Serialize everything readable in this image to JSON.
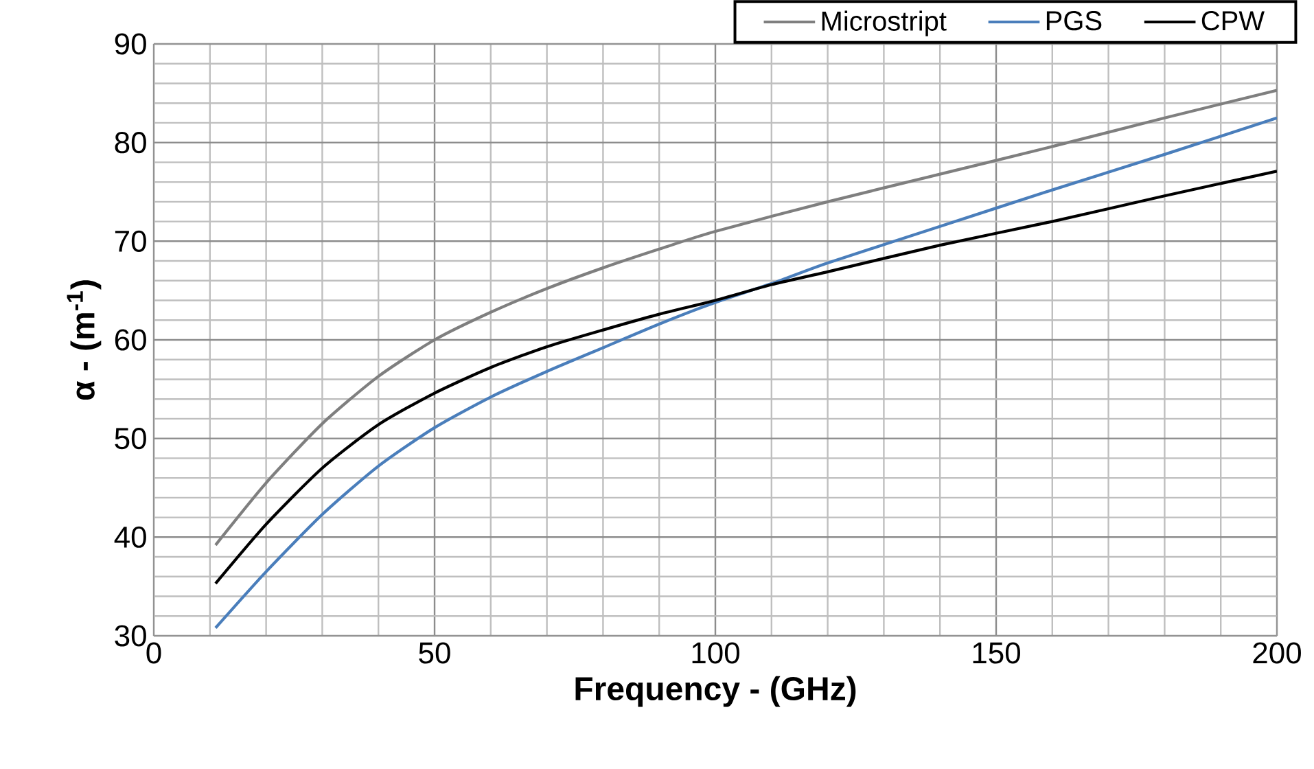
{
  "chart_data": {
    "type": "line",
    "xlabel": "Frequency - (GHz)",
    "ylabel": "α - (m$^{-1}$)",
    "xlim": [
      0,
      200
    ],
    "ylim": [
      30,
      90
    ],
    "xticks": [
      0,
      50,
      100,
      150,
      200
    ],
    "yticks": [
      30,
      40,
      50,
      60,
      70,
      80,
      90
    ],
    "grid": true,
    "legend": "top right",
    "marker": "none",
    "line_style": "solid",
    "series": [
      {
        "name": "Microstript",
        "color": "#7f7f7f",
        "x": [
          11,
          20,
          30,
          40,
          50,
          60,
          70,
          80,
          90,
          100,
          120,
          140,
          160,
          180,
          200
        ],
        "values": [
          39.2,
          45.5,
          51.5,
          56.3,
          60,
          62.8,
          65.2,
          67.3,
          69.2,
          71,
          74,
          76.8,
          79.6,
          82.5,
          85.3
        ]
      },
      {
        "name": "PGS",
        "color": "#4a7ebb",
        "x": [
          11,
          20,
          30,
          40,
          50,
          60,
          70,
          80,
          90,
          100,
          110,
          120,
          140,
          160,
          180,
          200
        ],
        "values": [
          30.8,
          36.5,
          42.3,
          47.2,
          51.1,
          54.2,
          56.8,
          59.2,
          61.6,
          63.8,
          65.7,
          67.8,
          71.5,
          75.2,
          78.8,
          82.5
        ]
      },
      {
        "name": "CPW",
        "color": "#000000",
        "x": [
          11,
          20,
          30,
          40,
          50,
          60,
          70,
          80,
          90,
          100,
          110,
          120,
          140,
          160,
          180,
          200
        ],
        "values": [
          35.3,
          41.3,
          47,
          51.4,
          54.6,
          57.2,
          59.3,
          61,
          62.6,
          64,
          65.6,
          66.9,
          69.6,
          72,
          74.6,
          77.1
        ]
      }
    ]
  }
}
